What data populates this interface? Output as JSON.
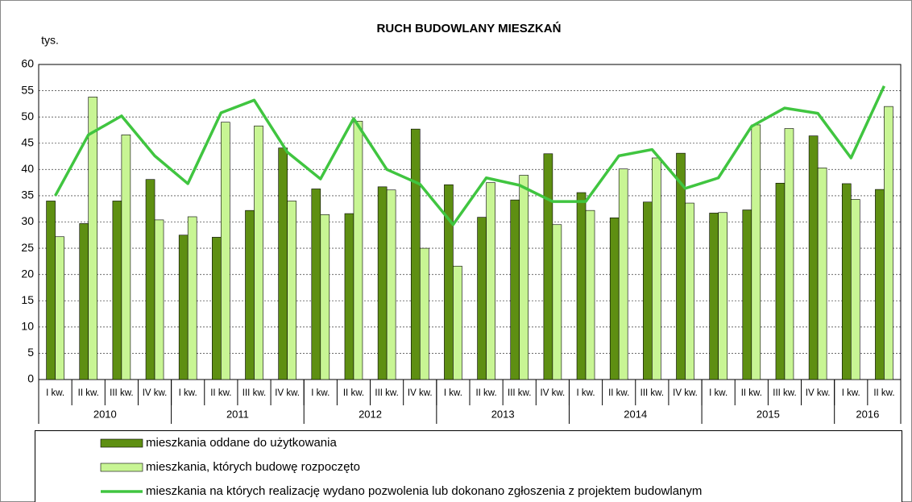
{
  "chart_data": {
    "type": "bar",
    "title": "RUCH BUDOWLANY MIESZKAŃ",
    "y_unit": "tys.",
    "categories": [
      "I kw.",
      "II kw.",
      "III kw.",
      "IV kw.",
      "I kw.",
      "II kw.",
      "III kw.",
      "IV kw.",
      "I kw.",
      "II kw.",
      "III kw.",
      "IV kw.",
      "I kw.",
      "II kw.",
      "III kw.",
      "IV kw.",
      "I kw.",
      "II kw.",
      "III kw.",
      "IV kw.",
      "I kw.",
      "II kw.",
      "III kw.",
      "IV kw.",
      "I kw.",
      "II kw."
    ],
    "x_groups": [
      {
        "label": "2010",
        "count": 4
      },
      {
        "label": "2011",
        "count": 4
      },
      {
        "label": "2012",
        "count": 4
      },
      {
        "label": "2013",
        "count": 4
      },
      {
        "label": "2014",
        "count": 4
      },
      {
        "label": "2015",
        "count": 4
      },
      {
        "label": "2016",
        "count": 2
      }
    ],
    "series": [
      {
        "name": "mieszkania oddane do użytkowania",
        "type": "bar",
        "color": "#5e8f12",
        "values": [
          34.0,
          29.7,
          34.0,
          38.1,
          27.5,
          27.1,
          32.2,
          44.1,
          36.3,
          31.6,
          36.7,
          47.7,
          37.1,
          30.9,
          34.2,
          43.0,
          35.6,
          30.8,
          33.8,
          43.1,
          31.7,
          32.3,
          37.4,
          46.4,
          37.3,
          36.2
        ]
      },
      {
        "name": "mieszkania, których budowę rozpoczęto",
        "type": "bar",
        "color": "#c8f594",
        "values": [
          27.2,
          53.8,
          46.6,
          30.4,
          31.0,
          49.0,
          48.3,
          34.0,
          31.4,
          49.2,
          36.1,
          25.0,
          21.6,
          37.5,
          38.9,
          29.5,
          32.2,
          40.1,
          42.2,
          33.6,
          31.8,
          48.5,
          47.8,
          40.3,
          34.3,
          52.0
        ]
      },
      {
        "name": "mieszkania na których realizację wydano pozwolenia lub dokonano zgłoszenia z projektem budowlanym",
        "type": "line",
        "color": "#40c540",
        "values": [
          35.0,
          46.6,
          50.2,
          42.6,
          37.3,
          50.8,
          53.2,
          43.3,
          38.2,
          49.7,
          40.0,
          37.2,
          29.5,
          38.4,
          37.0,
          33.9,
          33.9,
          42.6,
          43.8,
          36.4,
          38.4,
          48.2,
          51.7,
          50.7,
          42.2,
          55.9
        ]
      }
    ],
    "ylim": [
      0,
      60
    ],
    "yticks": [
      0,
      5,
      10,
      15,
      20,
      25,
      30,
      35,
      40,
      45,
      50,
      55,
      60
    ],
    "grid": true
  }
}
